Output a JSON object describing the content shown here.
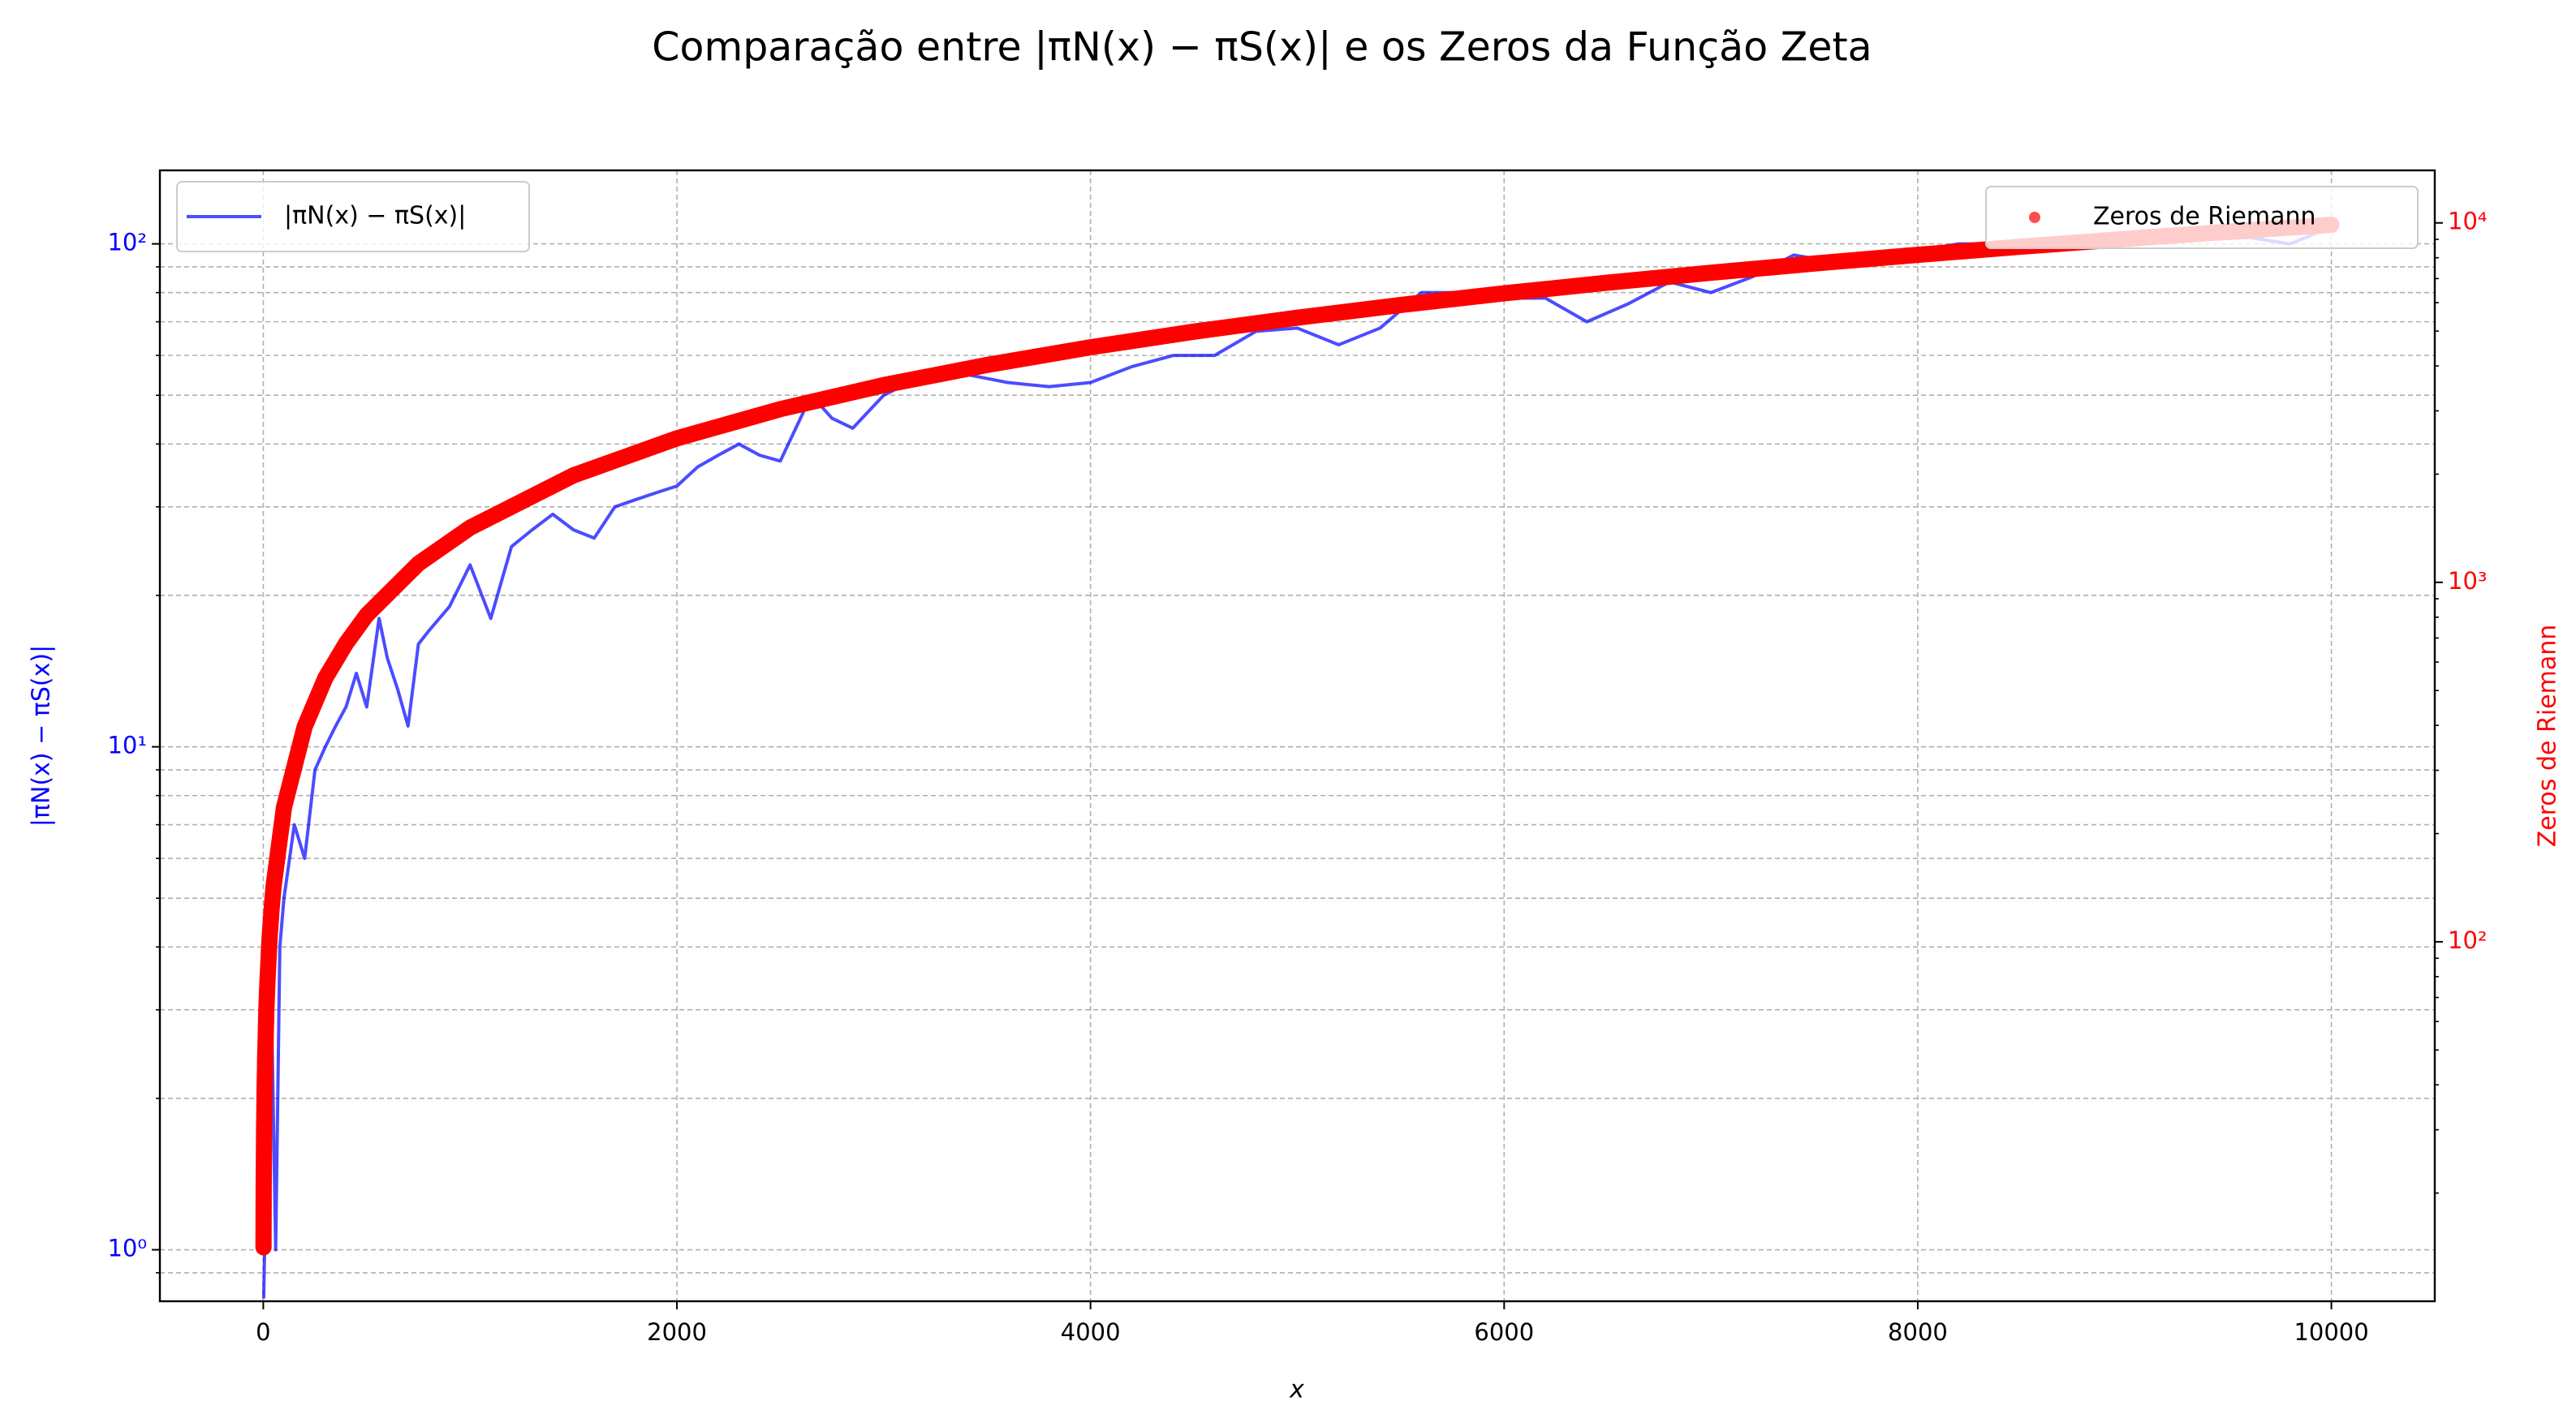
{
  "chart_data": {
    "type": "line",
    "title": "Comparação entre |πN(x) − πS(x)| e os Zeros da Função Zeta",
    "x_label": "x",
    "y_label": "|πN(x) − πS(x)|",
    "y2_label": "Zeros de Riemann",
    "xlim": [
      -500,
      10500
    ],
    "xticks": [
      0,
      2000,
      4000,
      6000,
      8000,
      10000
    ],
    "ylim": [
      0.79,
      140
    ],
    "ylog": true,
    "yticks": [
      {
        "value": 1,
        "label": "10⁰"
      },
      {
        "value": 10,
        "label": "10¹"
      },
      {
        "value": 100,
        "label": "10²"
      }
    ],
    "yminorticks": [
      0.9,
      2,
      3,
      4,
      5,
      6,
      7,
      8,
      9,
      20,
      30,
      40,
      50,
      60,
      70,
      80,
      90
    ],
    "y2lim": [
      10,
      14000
    ],
    "y2log": true,
    "y2ticks": [
      {
        "value": 100,
        "label": "10²"
      },
      {
        "value": 1000,
        "label": "10³"
      },
      {
        "value": 10000,
        "label": "10⁴"
      }
    ],
    "y2minorticks": [
      20,
      30,
      40,
      50,
      60,
      70,
      80,
      90,
      200,
      300,
      400,
      500,
      600,
      700,
      800,
      900,
      2000,
      3000,
      4000,
      5000,
      6000,
      7000,
      8000,
      9000
    ],
    "grid": true,
    "series": [
      {
        "name": "|πN(x) − πS(x)|",
        "type": "line",
        "axis": "y",
        "color": "#0000ff",
        "legend": "upper left",
        "x": [
          2,
          20,
          40,
          60,
          80,
          100,
          150,
          200,
          250,
          300,
          350,
          400,
          450,
          500,
          560,
          600,
          650,
          700,
          750,
          800,
          900,
          1000,
          1100,
          1200,
          1300,
          1400,
          1500,
          1600,
          1700,
          1800,
          1900,
          2000,
          2100,
          2200,
          2300,
          2400,
          2500,
          2650,
          2750,
          2850,
          3000,
          3200,
          3400,
          3600,
          3800,
          4000,
          4200,
          4400,
          4600,
          4800,
          5000,
          5200,
          5400,
          5600,
          5800,
          6000,
          6200,
          6400,
          6600,
          6800,
          7000,
          7200,
          7400,
          7600,
          7800,
          8000,
          8200,
          8400,
          8600,
          8800,
          9000,
          9200,
          9400,
          9600,
          9800,
          10000
        ],
        "values": [
          0.8,
          2,
          3,
          1,
          4,
          5,
          7,
          6,
          9,
          10,
          11,
          12,
          14,
          12,
          18,
          15,
          13,
          11,
          16,
          17,
          19,
          23,
          18,
          25,
          27,
          29,
          27,
          26,
          30,
          31,
          32,
          33,
          36,
          38,
          40,
          38,
          37,
          50,
          45,
          43,
          50,
          55,
          55,
          53,
          52,
          53,
          57,
          60,
          60,
          67,
          68,
          63,
          68,
          80,
          80,
          78,
          78,
          70,
          76,
          84,
          80,
          86,
          95,
          92,
          95,
          97,
          100,
          100,
          102,
          100,
          102,
          105,
          102,
          103,
          100,
          108
        ]
      },
      {
        "name": "Zeros de Riemann",
        "type": "scatter",
        "axis": "y2",
        "color": "#ff0000",
        "legend": "upper right",
        "x": [
          1,
          2,
          3,
          4,
          5,
          6,
          7,
          8,
          9,
          10,
          15,
          20,
          30,
          40,
          50,
          100,
          200,
          300,
          400,
          500,
          750,
          1000,
          1500,
          2000,
          2500,
          3000,
          3500,
          4000,
          4500,
          5000,
          5500,
          6000,
          6500,
          7000,
          7500,
          8000,
          8500,
          9000,
          9500,
          10000
        ],
        "values": [
          14.13,
          21.02,
          25.01,
          30.42,
          32.94,
          37.59,
          40.92,
          43.33,
          48.01,
          49.77,
          65.11,
          77.14,
          101.32,
          122.95,
          143.11,
          236.52,
          396.38,
          541.85,
          676.2,
          811.18,
          1127,
          1419.42,
          1985,
          2515.29,
          3033,
          3537,
          4025,
          4508,
          4982,
          5447.86,
          5910,
          6367,
          6818,
          7265,
          7709,
          8150,
          8586,
          9020,
          9450,
          9878.18
        ]
      }
    ]
  }
}
